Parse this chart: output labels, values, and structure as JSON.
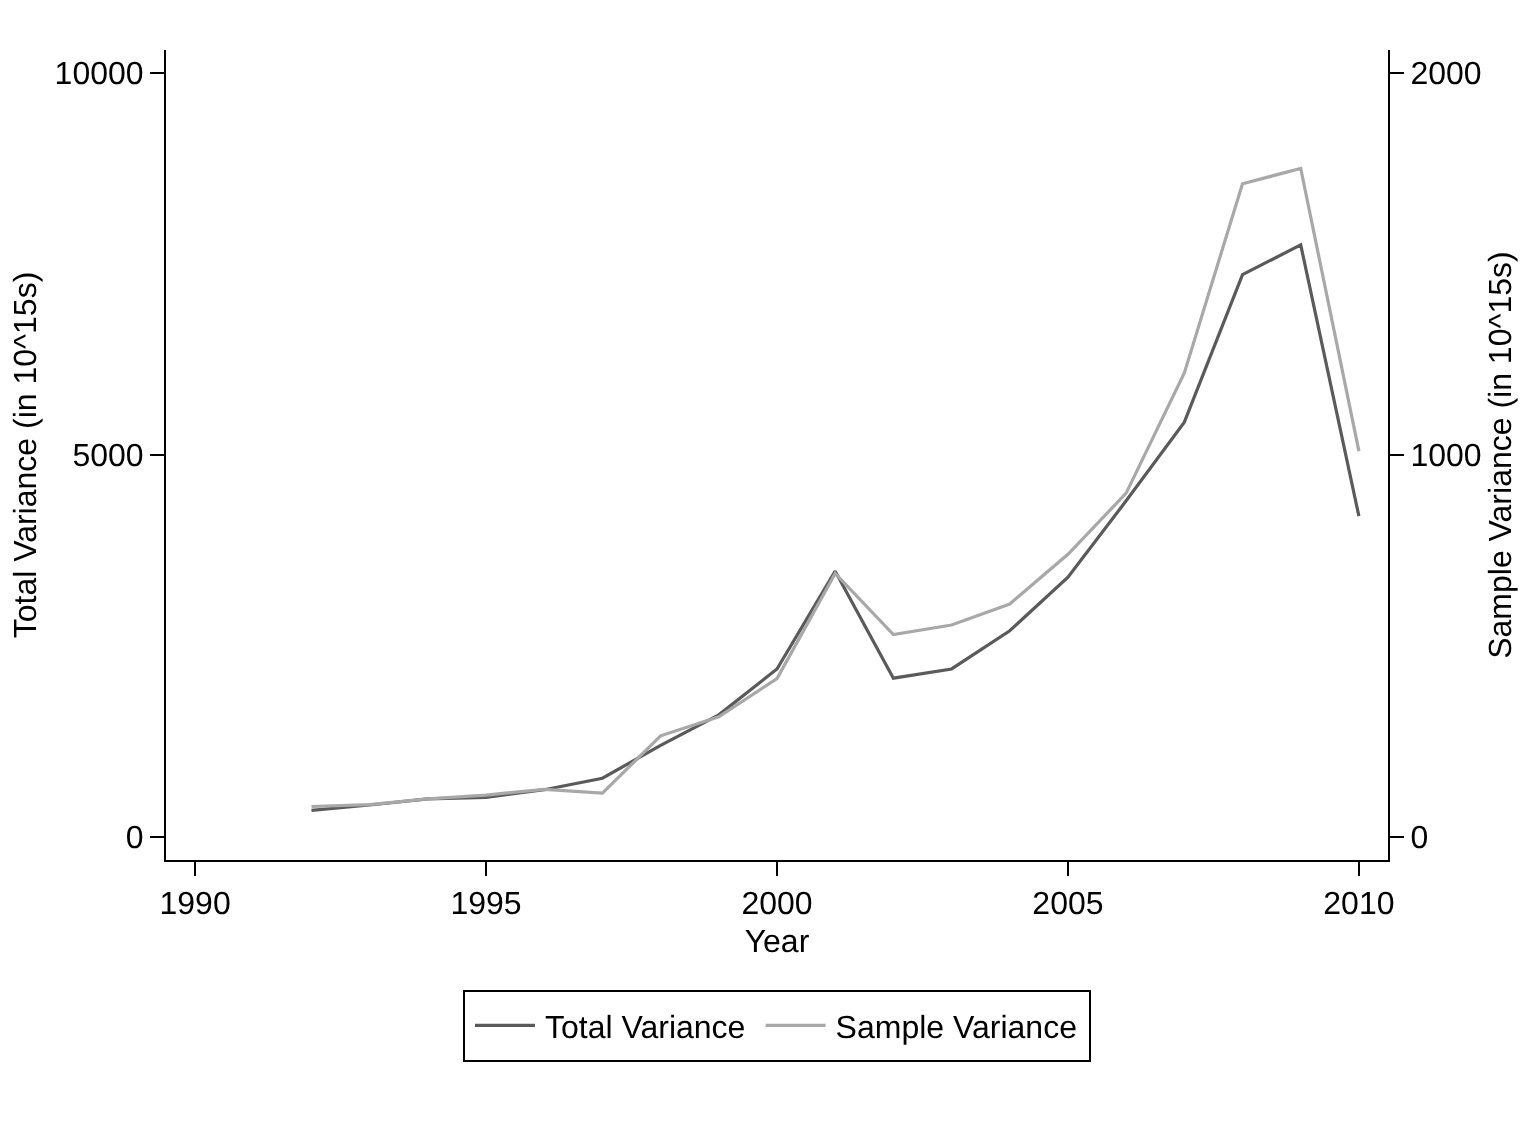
{
  "chart_data": {
    "type": "line",
    "xlabel": "Year",
    "ylabel": "Total Variance (in 10^15s)",
    "y2label": "Sample Variance (in 10^15s)",
    "x": [
      1992,
      1993,
      1994,
      1995,
      1996,
      1997,
      1998,
      1999,
      2000,
      2001,
      2002,
      2003,
      2004,
      2005,
      2006,
      2007,
      2008,
      2009,
      2010
    ],
    "series": [
      {
        "name": "Total Variance",
        "color": "#5a5a5a",
        "values": [
          350,
          420,
          500,
          520,
          620,
          770,
          1200,
          1600,
          2200,
          3480,
          2080,
          2200,
          2700,
          3400,
          4400,
          5430,
          7360,
          7750,
          4200
        ]
      },
      {
        "name": "Sample Variance",
        "color": "#a8a8a8",
        "axis": "y2",
        "values": [
          80,
          85,
          100,
          110,
          125,
          115,
          265,
          315,
          415,
          690,
          530,
          555,
          610,
          740,
          900,
          1215,
          1710,
          1750,
          1010
        ]
      }
    ],
    "xlim": [
      1989.5,
      2010.5
    ],
    "xticks": [
      1990,
      1995,
      2000,
      2005,
      2010
    ],
    "ylim": [
      -300,
      10300
    ],
    "yticks": [
      0,
      5000,
      10000
    ],
    "y2lim": [
      -60,
      2060
    ],
    "y2ticks": [
      0,
      1000,
      2000
    ],
    "grid": false,
    "legend": "bottom",
    "marker": "none",
    "line_style": "solid"
  }
}
